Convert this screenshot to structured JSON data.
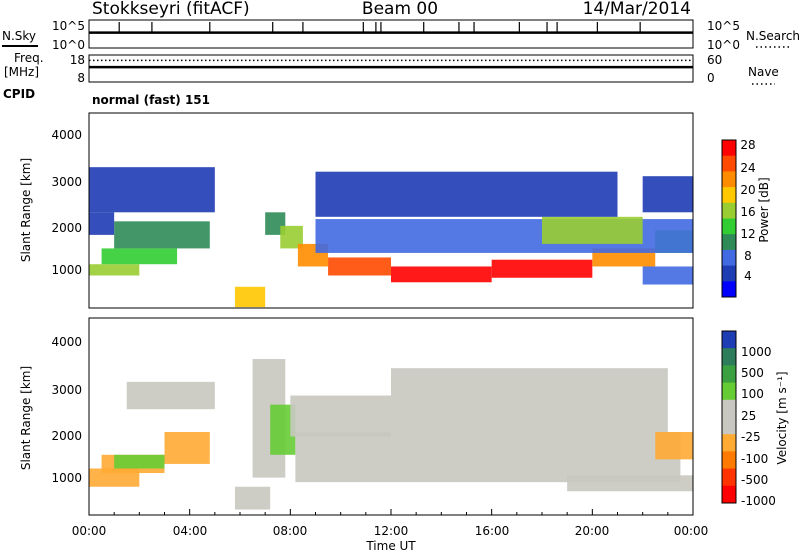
{
  "header": {
    "station": "Stokkseyri (fitACF)",
    "beam": "Beam 00",
    "date": "14/Mar/2014"
  },
  "nsky_panel": {
    "left_label": "N.Sky",
    "left_ticks": [
      "10^5",
      "10^0"
    ],
    "right_label": "N.Search",
    "right_ticks": [
      "10^5",
      "10^0"
    ]
  },
  "freq_panel": {
    "left_label_line1": "Freq.",
    "left_label_line2": "[MHz]",
    "left_ticks": [
      "18",
      "8"
    ],
    "right_label": "Nave",
    "right_ticks": [
      "60",
      "0"
    ],
    "cpid_label": "CPID",
    "mode": "normal (fast) 151"
  },
  "power_panel": {
    "ylabel": "Slant Range [km]",
    "yticks": [
      "4000",
      "3000",
      "2000",
      "1000"
    ],
    "colorbar_label": "Power [dB]",
    "colorbar_ticks": [
      "28",
      "24",
      "20",
      "16",
      "12",
      "8",
      "4"
    ],
    "colorbar_colors": [
      "#ff0000",
      "#ff4a00",
      "#ff8c00",
      "#ffc800",
      "#9acd32",
      "#32cd32",
      "#2e8b57",
      "#4169e1",
      "#1e3cb4",
      "#0000ff"
    ]
  },
  "velocity_panel": {
    "ylabel": "Slant Range [km]",
    "yticks": [
      "4000",
      "3000",
      "2000",
      "1000"
    ],
    "colorbar_label": "Velocity [m s⁻¹]",
    "colorbar_ticks": [
      "1000",
      "500",
      "100",
      "25",
      "-25",
      "-100",
      "-500",
      "-1000"
    ],
    "colorbar_colors": [
      "#1e3cb4",
      "#2e7d5a",
      "#3aa040",
      "#66cc33",
      "#c8c8c0",
      "#c8c8c0",
      "#ffaa33",
      "#ff7a00",
      "#ff3300",
      "#ff0000"
    ]
  },
  "xaxis": {
    "ticks": [
      "00:00",
      "04:00",
      "08:00",
      "12:00",
      "16:00",
      "20:00",
      "00:00"
    ],
    "label": "Time UT"
  },
  "chart_data": [
    {
      "type": "heatmap",
      "quantity": "power",
      "unit": "dB",
      "x_range_hours": [
        0,
        24
      ],
      "y_range_km": [
        180,
        4500
      ],
      "color_range": [
        0,
        30
      ],
      "cells": [
        {
          "t": [
            0,
            2
          ],
          "r": [
            900,
            1150
          ],
          "v": 18
        },
        {
          "t": [
            0.5,
            3.5
          ],
          "r": [
            1150,
            1500
          ],
          "v": 14
        },
        {
          "t": [
            1,
            4.8
          ],
          "r": [
            1500,
            2100
          ],
          "v": 10
        },
        {
          "t": [
            0,
            1
          ],
          "r": [
            1800,
            2300
          ],
          "v": 6
        },
        {
          "t": [
            0,
            5
          ],
          "r": [
            2300,
            3300
          ],
          "v": 5
        },
        {
          "t": [
            5.8,
            7
          ],
          "r": [
            200,
            650
          ],
          "v": 19
        },
        {
          "t": [
            7,
            7.8
          ],
          "r": [
            1800,
            2300
          ],
          "v": 11
        },
        {
          "t": [
            7.6,
            8.5
          ],
          "r": [
            1500,
            2000
          ],
          "v": 17
        },
        {
          "t": [
            8.3,
            9.5
          ],
          "r": [
            1100,
            1600
          ],
          "v": 22
        },
        {
          "t": [
            9.5,
            12
          ],
          "r": [
            900,
            1300
          ],
          "v": 24
        },
        {
          "t": [
            12,
            16
          ],
          "r": [
            750,
            1100
          ],
          "v": 27
        },
        {
          "t": [
            16,
            20
          ],
          "r": [
            850,
            1250
          ],
          "v": 27
        },
        {
          "t": [
            20,
            22.5
          ],
          "r": [
            1100,
            1500
          ],
          "v": 22
        },
        {
          "t": [
            22.5,
            24
          ],
          "r": [
            1400,
            1900
          ],
          "v": 13
        },
        {
          "t": [
            9,
            24
          ],
          "r": [
            1400,
            2150
          ],
          "v": 9
        },
        {
          "t": [
            18,
            22
          ],
          "r": [
            1600,
            2200
          ],
          "v": 17
        },
        {
          "t": [
            9,
            21
          ],
          "r": [
            2200,
            3200
          ],
          "v": 5
        },
        {
          "t": [
            22,
            24
          ],
          "r": [
            2300,
            3100
          ],
          "v": 6
        },
        {
          "t": [
            22,
            24
          ],
          "r": [
            700,
            1100
          ],
          "v": 7
        }
      ]
    },
    {
      "type": "heatmap",
      "quantity": "velocity",
      "unit": "m s^-1",
      "x_range_hours": [
        0,
        24
      ],
      "y_range_km": [
        180,
        4500
      ],
      "color_range": [
        -1000,
        1000
      ],
      "cells": [
        {
          "t": [
            0,
            2
          ],
          "r": [
            800,
            1200
          ],
          "v": -300
        },
        {
          "t": [
            0.5,
            3
          ],
          "r": [
            1100,
            1500
          ],
          "v": -200
        },
        {
          "t": [
            3,
            4.8
          ],
          "r": [
            1300,
            2000
          ],
          "v": -350
        },
        {
          "t": [
            1,
            3
          ],
          "r": [
            1200,
            1500
          ],
          "v": 400
        },
        {
          "t": [
            1.5,
            5
          ],
          "r": [
            2500,
            3100
          ],
          "v": 0
        },
        {
          "t": [
            5.8,
            7.2
          ],
          "r": [
            300,
            800
          ],
          "v": 60
        },
        {
          "t": [
            6.5,
            7.8
          ],
          "r": [
            1000,
            3600
          ],
          "v": 150
        },
        {
          "t": [
            7.2,
            8.2
          ],
          "r": [
            1500,
            2600
          ],
          "v": 300
        },
        {
          "t": [
            8.2,
            23.5
          ],
          "r": [
            900,
            2000
          ],
          "v": 0
        },
        {
          "t": [
            8,
            12
          ],
          "r": [
            1900,
            2800
          ],
          "v": 0
        },
        {
          "t": [
            12,
            23
          ],
          "r": [
            2000,
            3400
          ],
          "v": -40
        },
        {
          "t": [
            19,
            24
          ],
          "r": [
            700,
            1050
          ],
          "v": 80
        },
        {
          "t": [
            22.5,
            24
          ],
          "r": [
            1400,
            2000
          ],
          "v": -200
        }
      ]
    },
    {
      "type": "line",
      "quantity": "N.Sky",
      "x_range_hours": [
        0,
        24
      ],
      "note": "noise level, log scale 10^0 to 10^5",
      "baseline_fraction": 0.55,
      "spikes_hours": [
        1.2,
        2.5,
        4.8,
        7.3,
        8.5,
        10.9,
        11.4,
        11.6,
        13.3,
        14.7,
        15.3,
        17.1,
        18.2,
        18.6,
        20.2,
        21.9
      ]
    },
    {
      "type": "line",
      "quantity": "frequency",
      "unit": "MHz",
      "x_range_hours": [
        0,
        24
      ],
      "ylim": [
        8,
        18
      ],
      "solid_series_fraction": 0.55,
      "dotted_series_fraction": 0.2,
      "note": "solid = Freq., dotted = Nave"
    }
  ]
}
